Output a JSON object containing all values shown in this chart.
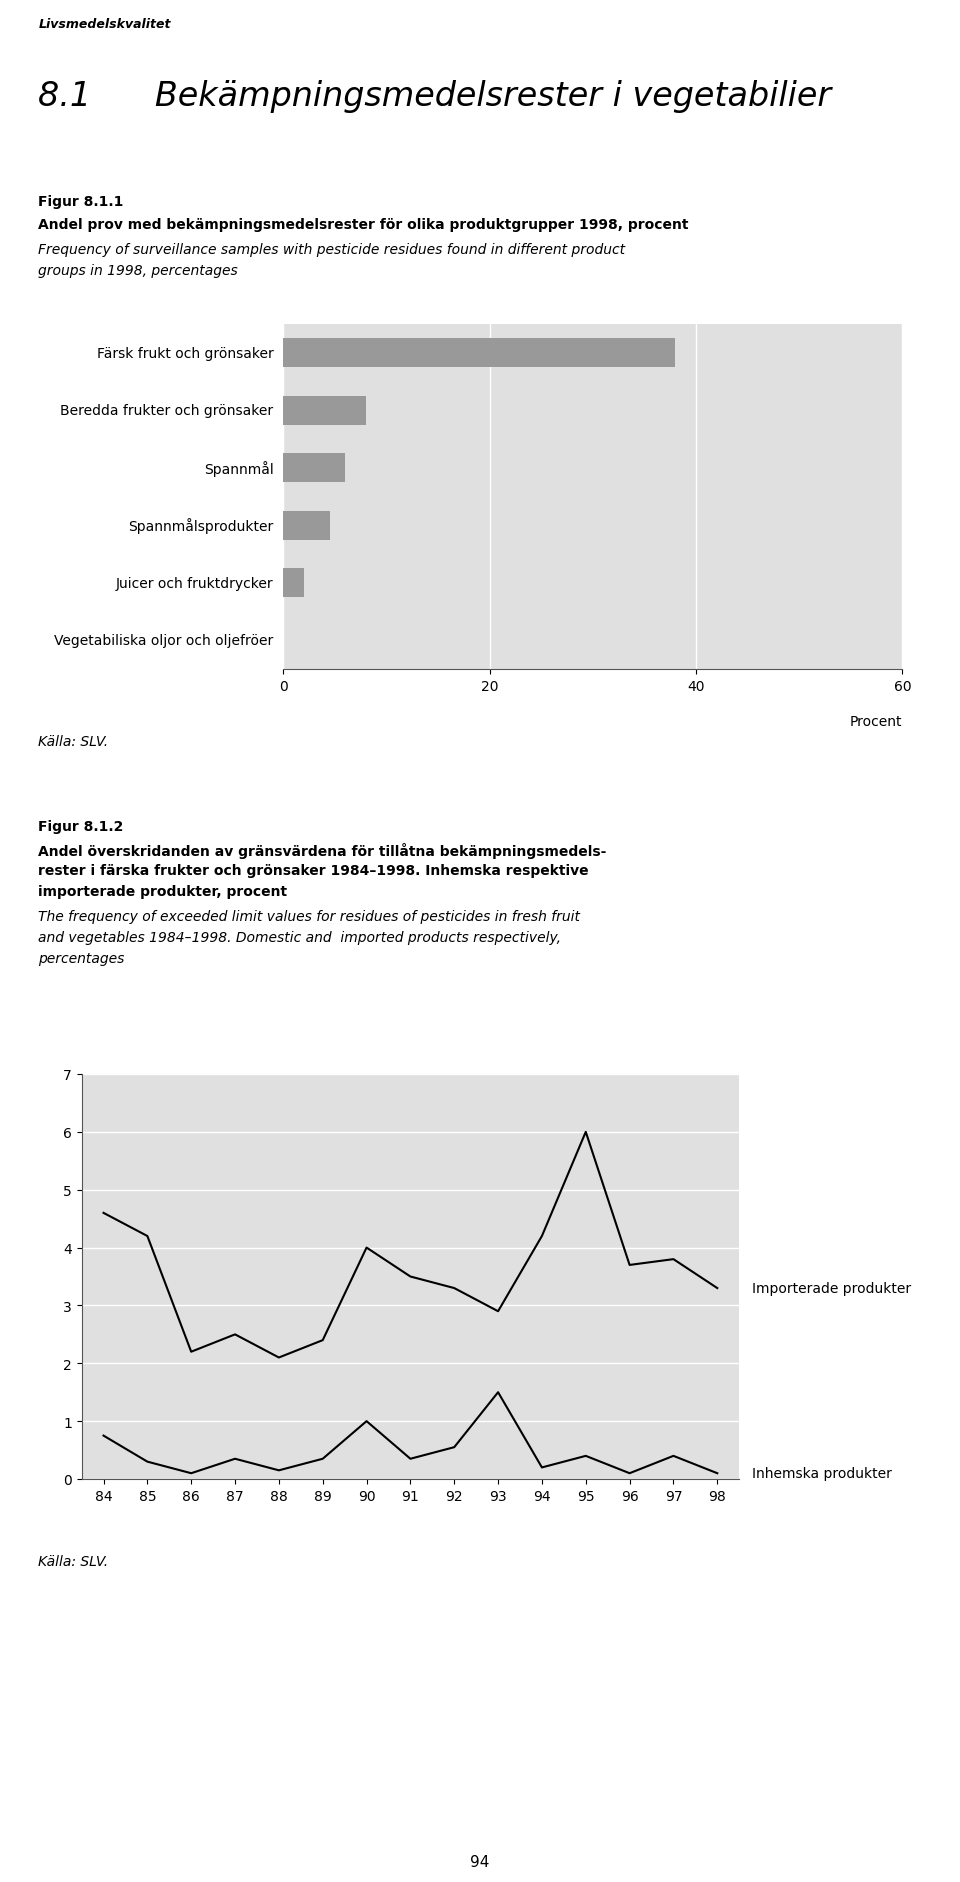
{
  "page_header": "Livsmedelskvalitet",
  "section_title": "8.1      Bekämpningsmedelsrester i vegetabilier",
  "fig1_label": "Figur 8.1.1",
  "fig1_bold": "Andel prov med bekämpningsmedelsrester för olika produktgrupper 1998, procent",
  "fig1_italic_lines": [
    "Frequency of surveillance samples with pesticide residues found in different product",
    "groups in 1998, percentages"
  ],
  "bar_categories": [
    "Färsk frukt och grönsaker",
    "Beredda frukter och grönsaker",
    "Spannmål",
    "Spannmålsprodukter",
    "Juicer och fruktdrycker",
    "Vegetabiliska oljor och oljefröer"
  ],
  "bar_values": [
    38,
    8,
    6,
    4.5,
    2,
    0
  ],
  "bar_color": "#999999",
  "bar_bg_color": "#e0e0e0",
  "bar_xlim": [
    0,
    60
  ],
  "bar_xticks": [
    0,
    20,
    40,
    60
  ],
  "bar_xlabel": "Procent",
  "fig1_source": "Källa: SLV.",
  "fig2_label": "Figur 8.1.2",
  "fig2_bold_lines": [
    "Andel överskridanden av gränsvärdena för tillåtna bekämpningsmedels-",
    "rester i färska frukter och grönsaker 1984–1998. Inhemska respektive",
    "importerade produkter, procent"
  ],
  "fig2_italic_lines": [
    "The frequency of exceeded limit values for residues of pesticides in fresh fruit",
    "and vegetables 1984–1998. Domestic and  imported products respectively,",
    "percentages"
  ],
  "line_years": [
    84,
    85,
    86,
    87,
    88,
    89,
    90,
    91,
    92,
    93,
    94,
    95,
    96,
    97,
    98
  ],
  "line_imported": [
    4.6,
    4.2,
    2.2,
    2.5,
    2.1,
    2.4,
    4.0,
    3.5,
    3.3,
    2.9,
    4.2,
    6.0,
    3.7,
    3.8,
    3.3
  ],
  "line_domestic": [
    0.75,
    0.3,
    0.1,
    0.35,
    0.15,
    0.35,
    1.0,
    0.35,
    0.55,
    1.5,
    0.2,
    0.4,
    0.1,
    0.4,
    0.1
  ],
  "line_color": "#000000",
  "line_ylim": [
    0,
    7
  ],
  "line_yticks": [
    0,
    1,
    2,
    3,
    4,
    5,
    6,
    7
  ],
  "line_bg_color": "#e0e0e0",
  "label_imported": "Importerade produkter",
  "label_domestic": "Inhemska produkter",
  "fig2_source": "Källa: SLV.",
  "page_number": "94"
}
